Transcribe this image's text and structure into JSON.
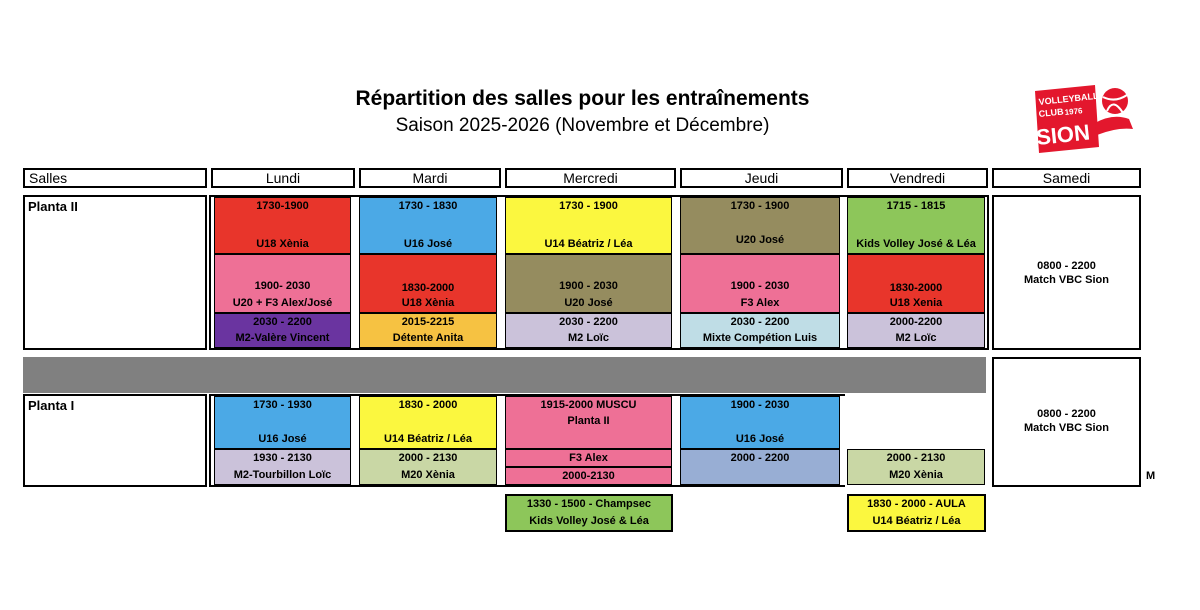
{
  "title": "Répartition des salles pour les entraînements",
  "subtitle": "Saison 2025-2026 (Novembre et Décembre)",
  "logo": {
    "line1": "VOLLEYBALL",
    "line2": "CLUB",
    "year": "1976",
    "name": "SION"
  },
  "headers": [
    "Salles",
    "Lundi",
    "Mardi",
    "Mercredi",
    "Jeudi",
    "Vendredi",
    "Samedi"
  ],
  "colors": {
    "red": "#e8352b",
    "blue": "#4ba9e6",
    "yellow": "#fbf73f",
    "olive": "#958c5f",
    "green": "#8dc65a",
    "pink": "#ee7096",
    "purple": "#6a34a0",
    "orange": "#f6c242",
    "lilac": "#cbc2da",
    "lightblue": "#bfdde6",
    "sage": "#c9d7a5",
    "steel": "#98aed4",
    "grey": "#808080"
  },
  "planta2": {
    "label": "Planta II",
    "lundi": [
      {
        "t": "1730-1900",
        "g": "U18 Xènia"
      },
      {
        "t": "1900- 2030",
        "g": "U20 + F3 Alex/José"
      },
      {
        "t": "2030 - 2200",
        "g": "M2-Valère Vincent"
      }
    ],
    "mardi": [
      {
        "t": "1730 - 1830",
        "g": "U16 José"
      },
      {
        "t": "1830-2000",
        "g": "U18 Xènia"
      },
      {
        "t": "2015-2215",
        "g": "Détente Anita"
      }
    ],
    "mercredi": [
      {
        "t": "1730 - 1900",
        "g": "U14 Béatriz / Léa"
      },
      {
        "t": "1900 - 2030",
        "g": "U20 José"
      },
      {
        "t": "2030 - 2200",
        "g": "M2 Loïc"
      }
    ],
    "jeudi": [
      {
        "t": "1730 - 1900",
        "g": "U20 José"
      },
      {
        "t": "1900 - 2030",
        "g": "F3 Alex"
      },
      {
        "t": "2030 - 2200",
        "g": "Mixte Compétion Luis"
      }
    ],
    "vendredi": [
      {
        "t": "1715 - 1815",
        "g": "Kids Volley José & Léa"
      },
      {
        "t": "1830-2000",
        "g": "U18 Xenia"
      },
      {
        "t": "2000-2200",
        "g": "M2 Loïc"
      }
    ],
    "samedi": {
      "t": "0800 - 2200",
      "g": "Match VBC Sion"
    }
  },
  "planta1": {
    "label": "Planta I",
    "lundi": [
      {
        "t": "1730 - 1930",
        "g": "U16 José"
      },
      {
        "t": "1930 - 2130",
        "g": "M2-Tourbillon Loïc"
      }
    ],
    "mardi": [
      {
        "t": "1830 - 2000",
        "g": "U14 Béatriz / Léa"
      },
      {
        "t": "2000 - 2130",
        "g": "M20 Xènia"
      }
    ],
    "mercredi": [
      {
        "t": "1915-2000 MUSCU",
        "g": "Planta II"
      },
      {
        "t": "F3 Alex"
      },
      {
        "t": "2000-2130"
      }
    ],
    "jeudi": [
      {
        "t": "1900 - 2030",
        "g": "U16 José"
      },
      {
        "t": "2000 - 2200"
      }
    ],
    "vendredi": [
      {
        "t": "2000 - 2130",
        "g": "M20 Xènia"
      }
    ],
    "samedi": {
      "t": "0800 - 2200",
      "g": "Match VBC Sion"
    },
    "overflow": "M"
  },
  "extra": {
    "mercredi": {
      "t": "1330 - 1500 - Champsec",
      "g": "Kids Volley José & Léa"
    },
    "vendredi": {
      "t": "1830 - 2000 - AULA",
      "g": "U14 Béatriz / Léa"
    }
  }
}
